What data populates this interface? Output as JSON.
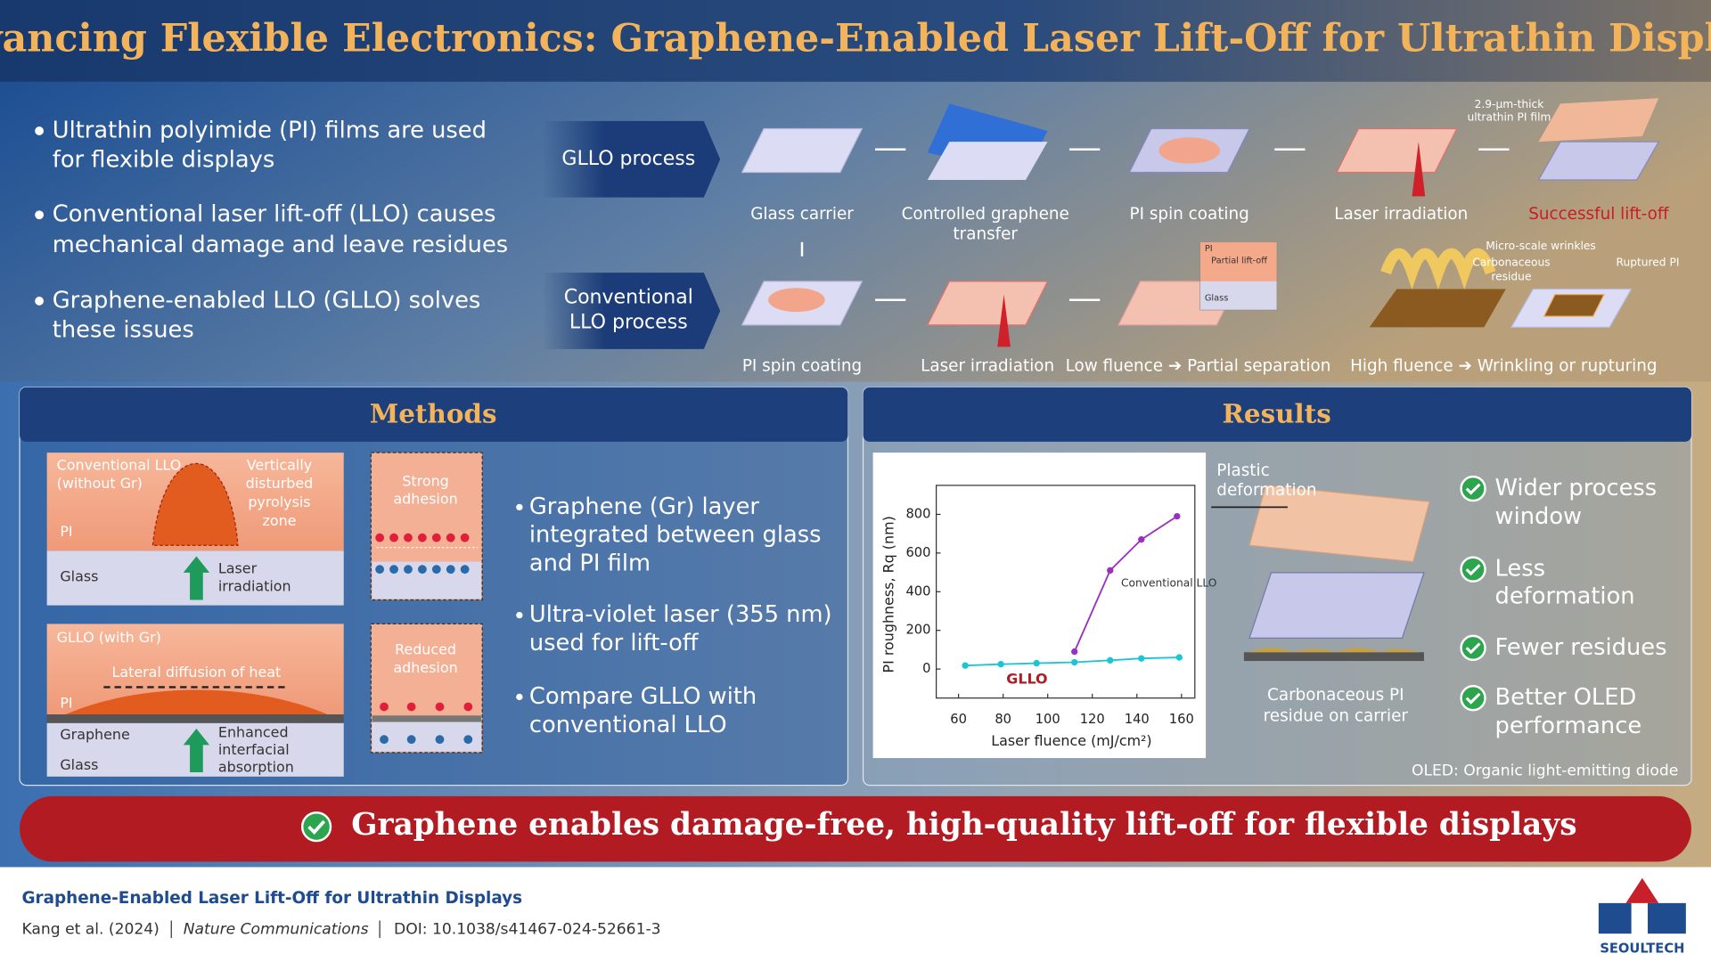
{
  "header": {
    "title": "Advancing Flexible Electronics: Graphene-Enabled Laser Lift-Off for Ultrathin Displays"
  },
  "intro_bullets": [
    [
      "Ultrathin polyimide (PI) films are used",
      "for flexible displays"
    ],
    [
      "Conventional laser lift-off (LLO) causes",
      "mechanical damage and leave residues"
    ],
    [
      "Graphene-enabled LLO (GLLO) solves",
      "these issues"
    ]
  ],
  "gllo_process": {
    "label": "GLLO process",
    "steps": [
      [
        "Glass carrier"
      ],
      [
        "Controlled graphene",
        "transfer"
      ],
      [
        "PI spin coating"
      ],
      [
        "Laser irradiation"
      ],
      [
        "Successful lift-off"
      ]
    ],
    "film_note": [
      "2.9-µm-thick",
      "ultrathin PI film"
    ]
  },
  "conventional_process": {
    "label": [
      "Conventional",
      "LLO process"
    ],
    "steps": [
      "PI spin coating",
      "Laser irradiation",
      "Low fluence ➔ Partial separation",
      "High fluence ➔ Wrinkling or rupturing"
    ],
    "inset_labels": [
      "PI",
      "Partial lift-off",
      "Glass"
    ],
    "damage_labels": {
      "wrinkles": "Micro-scale wrinkles",
      "residue": [
        "Carbonaceous",
        "residue"
      ],
      "rupture": "Ruptured PI"
    }
  },
  "methods": {
    "title": "Methods",
    "conventional_diagram": {
      "title": [
        "Conventional LLO",
        "(without Gr)"
      ],
      "zone": [
        "Vertically",
        "disturbed",
        "pyrolysis",
        "zone"
      ],
      "layers": [
        "PI",
        "Glass"
      ],
      "arrow": [
        "Laser",
        "irradiation"
      ],
      "inset": [
        "Strong",
        "adhesion"
      ]
    },
    "gllo_diagram": {
      "title": "GLLO (with Gr)",
      "heat": "Lateral diffusion of heat",
      "layers": [
        "PI",
        "Graphene",
        "Glass"
      ],
      "arrow": [
        "Enhanced",
        "interfacial",
        "absorption"
      ],
      "inset": [
        "Reduced",
        "adhesion"
      ]
    },
    "bullets": [
      [
        "Graphene (Gr) layer",
        "integrated between glass",
        "and PI film"
      ],
      [
        "Ultra-violet laser (355 nm)",
        "used for lift-off"
      ],
      [
        "Compare GLLO with",
        "conventional LLO"
      ]
    ]
  },
  "results": {
    "title": "Results",
    "chart": {
      "type": "line",
      "x_label": "Laser fluence (mJ/cm²)",
      "y_label": "PI roughness, Rq (nm)",
      "xlim": [
        50,
        166
      ],
      "ylim": [
        -150,
        950
      ],
      "xticks": [
        60,
        80,
        100,
        120,
        140,
        160
      ],
      "yticks": [
        0,
        200,
        400,
        600,
        800
      ],
      "series": [
        {
          "name": "Conventional LLO",
          "color": "#9b2fc0",
          "x": [
            112,
            128,
            142,
            158
          ],
          "values": [
            90,
            510,
            670,
            790
          ]
        },
        {
          "name": "GLLO",
          "color": "#19c6d6",
          "x": [
            63,
            79,
            95,
            112,
            128,
            142,
            159
          ],
          "values": [
            18,
            25,
            30,
            35,
            45,
            55,
            60
          ]
        }
      ]
    },
    "annotations": {
      "deformation": [
        "Plastic",
        "deformation"
      ],
      "residue": [
        "Carbonaceous PI",
        "residue on carrier"
      ]
    },
    "benefits": [
      [
        "Wider process",
        "window"
      ],
      [
        "Less",
        "deformation"
      ],
      [
        "Fewer residues"
      ],
      [
        "Better OLED",
        "performance"
      ]
    ],
    "footnote": "OLED: Organic light-emitting diode"
  },
  "banner": "Graphene enables damage-free, high-quality lift-off for flexible displays",
  "footer": {
    "title": "Graphene-Enabled Laser Lift-Off for Ultrathin Displays",
    "authors": "Kang et al. (2024)",
    "journal": "Nature Communications",
    "doi": "DOI: 10.1038/s41467-024-52661-3",
    "logo": "SEOULTECH"
  }
}
